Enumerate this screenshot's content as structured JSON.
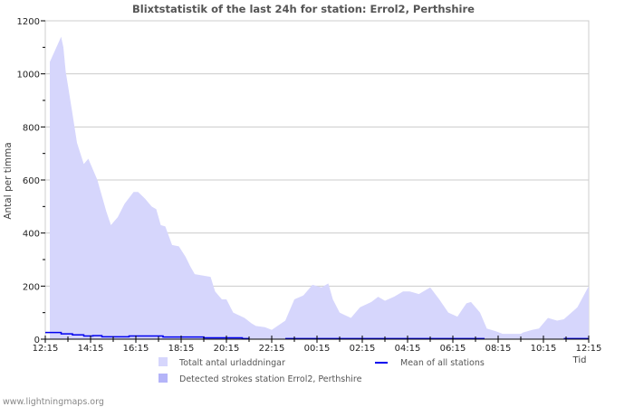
{
  "chart_data": {
    "type": "area",
    "title": "Blixtstatistik of the last 24h for station: Errol2, Perthshire",
    "xlabel": "Tid",
    "ylabel": "Antal per timma",
    "x_unit": "hours since 12:15",
    "xlim": [
      0,
      24
    ],
    "ylim": [
      0,
      1200
    ],
    "yticks": [
      0,
      200,
      400,
      600,
      800,
      1000,
      1200
    ],
    "xtick_labels": [
      "12:15",
      "14:15",
      "16:15",
      "18:15",
      "20:15",
      "22:15",
      "00:15",
      "02:15",
      "04:15",
      "06:15",
      "08:15",
      "10:15",
      "12:15"
    ],
    "grid": true,
    "legend_position": "bottom",
    "series": [
      {
        "name": "Totalt antal urladdningar",
        "color": "#d6d6fc",
        "x": [
          0.2,
          0.7,
          0.8,
          0.9,
          1.2,
          1.4,
          1.7,
          1.9,
          2.3,
          2.7,
          2.9,
          3.2,
          3.5,
          3.9,
          4.1,
          4.4,
          4.7,
          4.9,
          5.1,
          5.3,
          5.6,
          5.9,
          6.2,
          6.4,
          6.6,
          7.3,
          7.5,
          7.8,
          8.0,
          8.3,
          8.8,
          9.1,
          9.3,
          9.7,
          10.0,
          10.6,
          11.0,
          11.4,
          11.8,
          12.2,
          12.5,
          12.7,
          13.0,
          13.5,
          13.9,
          14.4,
          14.7,
          15.0,
          15.4,
          15.8,
          16.1,
          16.5,
          17.0,
          17.4,
          17.8,
          18.2,
          18.6,
          18.8,
          19.2,
          19.5,
          19.9,
          20.2,
          21.0,
          21.1,
          21.5,
          21.8,
          22.2,
          22.6,
          22.9,
          23.5,
          24.0
        ],
        "y": [
          1045,
          1140,
          1100,
          1010,
          850,
          740,
          660,
          680,
          600,
          480,
          430,
          460,
          510,
          555,
          555,
          530,
          500,
          490,
          430,
          425,
          355,
          350,
          310,
          275,
          245,
          235,
          180,
          150,
          150,
          100,
          80,
          60,
          50,
          45,
          35,
          70,
          150,
          165,
          205,
          195,
          210,
          150,
          100,
          80,
          120,
          140,
          160,
          145,
          160,
          180,
          180,
          170,
          195,
          150,
          100,
          85,
          135,
          140,
          100,
          40,
          30,
          20,
          20,
          25,
          35,
          40,
          80,
          70,
          75,
          120,
          200
        ]
      },
      {
        "name": "Detected strokes station Errol2, Perthshire",
        "color": "#b4b4f8",
        "x": [],
        "y": []
      },
      {
        "name": "Mean of all stations",
        "color": "#0000ee",
        "segments": [
          {
            "x": [
              0,
              0.7,
              1.2,
              1.7,
              2.1,
              2.5,
              3.7,
              5.2,
              7.0,
              8.7,
              9.0
            ],
            "y": [
              25,
              20,
              16,
              12,
              13,
              9,
              12,
              8,
              5,
              2,
              2
            ]
          },
          {
            "x": [
              10.6,
              19.4
            ],
            "y": [
              2,
              2
            ]
          },
          {
            "x": [
              22.9,
              24.0
            ],
            "y": [
              2,
              2
            ]
          }
        ]
      }
    ]
  },
  "footer": "www.lightningmaps.org"
}
